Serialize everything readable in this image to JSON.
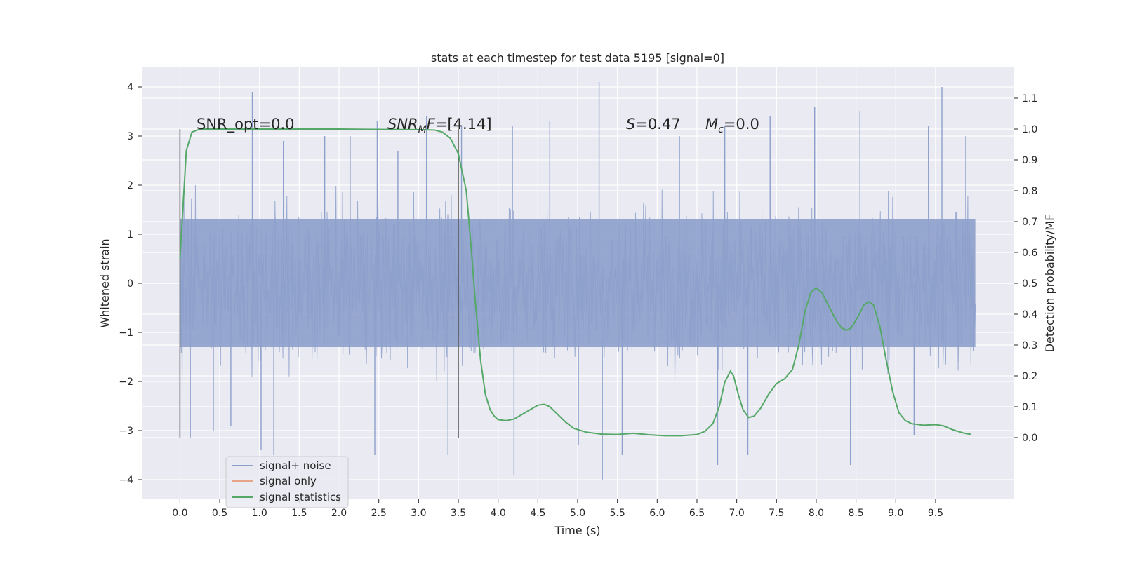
{
  "chart_data": {
    "type": "line",
    "title": "stats at each timestep for test data 5195 [signal=0]",
    "xlabel": "Time (s)",
    "ylabel_left": "Whitened strain",
    "ylabel_right": "Detection probability/MF",
    "xlim": [
      -0.48,
      10.48
    ],
    "ylim_left": [
      -4.4,
      4.4
    ],
    "ylim_right": [
      -0.2,
      1.2
    ],
    "x_ticks": [
      "0.0",
      "0.5",
      "1.0",
      "1.5",
      "2.0",
      "2.5",
      "3.0",
      "3.5",
      "4.0",
      "4.5",
      "5.0",
      "5.5",
      "6.0",
      "6.5",
      "7.0",
      "7.5",
      "8.0",
      "8.5",
      "9.0",
      "9.5"
    ],
    "x_tick_values": [
      0.0,
      0.5,
      1.0,
      1.5,
      2.0,
      2.5,
      3.0,
      3.5,
      4.0,
      4.5,
      5.0,
      5.5,
      6.0,
      6.5,
      7.0,
      7.5,
      8.0,
      8.5,
      9.0,
      9.5
    ],
    "y_left_ticks": [
      "4",
      "3",
      "2",
      "1",
      "0",
      "−1",
      "−2",
      "−3",
      "−4"
    ],
    "y_left_tick_values": [
      4,
      3,
      2,
      1,
      0,
      -1,
      -2,
      -3,
      -4
    ],
    "y_right_ticks": [
      "1.1",
      "1.0",
      "0.9",
      "0.8",
      "0.7",
      "0.6",
      "0.5",
      "0.4",
      "0.3",
      "0.2",
      "0.1",
      "0.0"
    ],
    "y_right_tick_values": [
      1.1,
      1.0,
      0.9,
      0.8,
      0.7,
      0.6,
      0.5,
      0.4,
      0.3,
      0.2,
      0.1,
      0.0
    ],
    "grid": true,
    "legend_position": "lower-left",
    "legend": [
      {
        "label": "signal+ noise",
        "color": "#8da0cb"
      },
      {
        "label": "signal only",
        "color": "#e8a488"
      },
      {
        "label": "signal statistics",
        "color": "#55a868"
      }
    ],
    "annotations": {
      "snr_opt": "SNR_opt=0.0",
      "snr_mf_prefix": "SNR",
      "snr_mf_sub": "M",
      "snr_mf_suffix": "F=[4.14]",
      "s_symbol": "S",
      "s_value": "=0.47",
      "mc_symbol": "M",
      "mc_sub": "c",
      "mc_value": "=0.0"
    },
    "vertical_lines_x": [
      0.0,
      3.5
    ],
    "noise_series": {
      "name": "signal+ noise",
      "x_range": [
        0.0,
        10.0
      ],
      "color": "#8da0cb",
      "peak_spikes": [
        [
          0.13,
          -3.15
        ],
        [
          0.42,
          -3.0
        ],
        [
          0.64,
          -2.9
        ],
        [
          0.91,
          3.9
        ],
        [
          1.02,
          -3.4
        ],
        [
          1.18,
          -3.5
        ],
        [
          1.3,
          2.9
        ],
        [
          1.82,
          3.0
        ],
        [
          2.14,
          3.0
        ],
        [
          2.48,
          3.3
        ],
        [
          2.45,
          -3.5
        ],
        [
          2.74,
          2.7
        ],
        [
          3.1,
          3.4
        ],
        [
          3.37,
          -3.5
        ],
        [
          3.54,
          3.2
        ],
        [
          4.18,
          3.2
        ],
        [
          4.2,
          -3.9
        ],
        [
          4.65,
          3.3
        ],
        [
          5.01,
          -3.3
        ],
        [
          5.27,
          4.1
        ],
        [
          5.31,
          -4.0
        ],
        [
          5.56,
          -3.5
        ],
        [
          6.28,
          3.0
        ],
        [
          6.76,
          -3.7
        ],
        [
          6.85,
          3.2
        ],
        [
          7.14,
          -3.5
        ],
        [
          7.42,
          3.4
        ],
        [
          7.98,
          3.6
        ],
        [
          8.43,
          -3.7
        ],
        [
          8.55,
          3.5
        ],
        [
          9.23,
          -3.1
        ],
        [
          9.41,
          3.2
        ],
        [
          9.58,
          4.0
        ],
        [
          9.88,
          3.0
        ]
      ]
    },
    "stat_series": {
      "name": "signal statistics",
      "axis": "right",
      "color": "#55a868",
      "points": [
        [
          0.0,
          0.58
        ],
        [
          0.08,
          0.93
        ],
        [
          0.15,
          0.99
        ],
        [
          0.25,
          1.0
        ],
        [
          0.5,
          1.0
        ],
        [
          1.0,
          1.0
        ],
        [
          1.5,
          1.0
        ],
        [
          2.0,
          1.0
        ],
        [
          2.5,
          0.999
        ],
        [
          3.0,
          0.998
        ],
        [
          3.2,
          0.997
        ],
        [
          3.3,
          0.99
        ],
        [
          3.4,
          0.97
        ],
        [
          3.5,
          0.92
        ],
        [
          3.6,
          0.8
        ],
        [
          3.66,
          0.62
        ],
        [
          3.72,
          0.42
        ],
        [
          3.78,
          0.25
        ],
        [
          3.84,
          0.14
        ],
        [
          3.9,
          0.09
        ],
        [
          3.95,
          0.07
        ],
        [
          4.0,
          0.058
        ],
        [
          4.1,
          0.055
        ],
        [
          4.2,
          0.06
        ],
        [
          4.3,
          0.075
        ],
        [
          4.4,
          0.09
        ],
        [
          4.5,
          0.105
        ],
        [
          4.58,
          0.108
        ],
        [
          4.65,
          0.1
        ],
        [
          4.75,
          0.075
        ],
        [
          4.85,
          0.05
        ],
        [
          4.95,
          0.03
        ],
        [
          5.1,
          0.018
        ],
        [
          5.3,
          0.011
        ],
        [
          5.5,
          0.01
        ],
        [
          5.7,
          0.014
        ],
        [
          5.9,
          0.009
        ],
        [
          6.1,
          0.006
        ],
        [
          6.3,
          0.006
        ],
        [
          6.5,
          0.01
        ],
        [
          6.6,
          0.02
        ],
        [
          6.7,
          0.045
        ],
        [
          6.78,
          0.1
        ],
        [
          6.85,
          0.18
        ],
        [
          6.92,
          0.215
        ],
        [
          6.96,
          0.2
        ],
        [
          7.02,
          0.14
        ],
        [
          7.08,
          0.09
        ],
        [
          7.15,
          0.065
        ],
        [
          7.22,
          0.07
        ],
        [
          7.3,
          0.095
        ],
        [
          7.4,
          0.14
        ],
        [
          7.5,
          0.175
        ],
        [
          7.6,
          0.19
        ],
        [
          7.7,
          0.22
        ],
        [
          7.78,
          0.3
        ],
        [
          7.86,
          0.41
        ],
        [
          7.93,
          0.47
        ],
        [
          8.0,
          0.485
        ],
        [
          8.07,
          0.47
        ],
        [
          8.15,
          0.43
        ],
        [
          8.25,
          0.38
        ],
        [
          8.32,
          0.355
        ],
        [
          8.38,
          0.348
        ],
        [
          8.44,
          0.355
        ],
        [
          8.52,
          0.39
        ],
        [
          8.6,
          0.43
        ],
        [
          8.66,
          0.44
        ],
        [
          8.72,
          0.43
        ],
        [
          8.8,
          0.36
        ],
        [
          8.88,
          0.25
        ],
        [
          8.96,
          0.15
        ],
        [
          9.04,
          0.08
        ],
        [
          9.12,
          0.055
        ],
        [
          9.2,
          0.045
        ],
        [
          9.35,
          0.04
        ],
        [
          9.5,
          0.042
        ],
        [
          9.6,
          0.038
        ],
        [
          9.72,
          0.025
        ],
        [
          9.85,
          0.015
        ],
        [
          9.95,
          0.01
        ]
      ]
    }
  }
}
